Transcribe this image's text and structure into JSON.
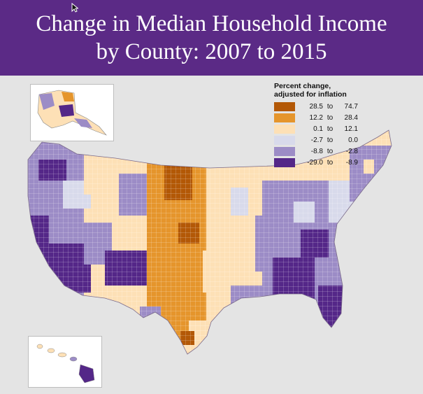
{
  "title": {
    "line1": "Change in Median Household Income",
    "line2": "by County: 2007 to 2015"
  },
  "legend": {
    "title_line1": "Percent change,",
    "title_line2": "adjusted for inflation",
    "items": [
      {
        "low": "28.5",
        "to": "to",
        "high": "74.7",
        "color": "#b35806"
      },
      {
        "low": "12.2",
        "to": "to",
        "high": "28.4",
        "color": "#e5952c"
      },
      {
        "low": "0.1",
        "to": "to",
        "high": "12.1",
        "color": "#fde0b6"
      },
      {
        "low": "-2.7",
        "to": "to",
        "high": "0.0",
        "color": "#d8daeb"
      },
      {
        "low": "-8.8",
        "to": "to",
        "high": "-2.8",
        "color": "#9c8cc6"
      },
      {
        "low": "-29.0",
        "to": "to",
        "high": "-8.9",
        "color": "#542788"
      }
    ]
  },
  "colors": {
    "title_band": "#5b2a86",
    "panel_bg": "#e4e4e4"
  },
  "icons": {
    "cursor": "mouse-pointer-icon"
  }
}
